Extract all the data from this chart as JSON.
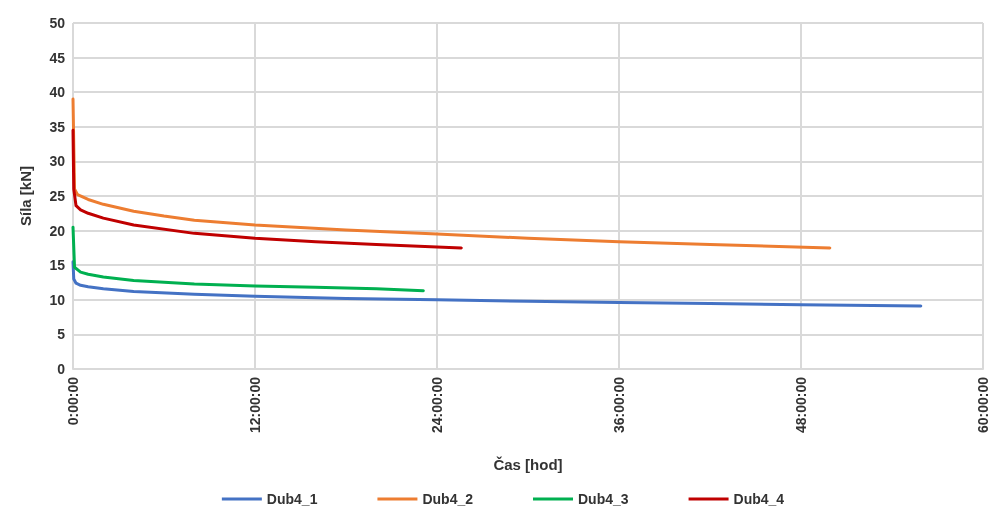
{
  "chart_data": {
    "type": "line",
    "xlabel": "Čas [hod]",
    "ylabel": "Síla [kN]",
    "xlim": [
      0,
      60
    ],
    "xticks": [
      {
        "value": 0,
        "label": "0:00:00"
      },
      {
        "value": 12,
        "label": "12:00:00"
      },
      {
        "value": 24,
        "label": "24:00:00"
      },
      {
        "value": 36,
        "label": "36:00:00"
      },
      {
        "value": 48,
        "label": "48:00:00"
      },
      {
        "value": 60,
        "label": "60:00:00"
      }
    ],
    "ylim": [
      0,
      50
    ],
    "yticks": [
      0,
      5,
      10,
      15,
      20,
      25,
      30,
      35,
      40,
      45,
      50
    ],
    "grid": true,
    "legend": "bottom",
    "marker": "none",
    "line_style": "solid",
    "series": [
      {
        "name": "Dub4_1",
        "color": "#4472c4",
        "x": [
          0,
          0.05,
          0.2,
          0.5,
          1,
          2,
          4,
          8,
          12,
          18,
          24,
          30,
          36,
          42,
          48,
          55.9
        ],
        "values": [
          15.5,
          13,
          12.4,
          12.1,
          11.9,
          11.6,
          11.2,
          10.8,
          10.5,
          10.2,
          10.0,
          9.8,
          9.6,
          9.45,
          9.3,
          9.1
        ]
      },
      {
        "name": "Dub4_2",
        "color": "#ed7d31",
        "x": [
          0,
          0.1,
          0.3,
          1,
          2,
          4,
          6,
          8,
          12,
          18,
          24,
          30,
          36,
          42,
          49.9
        ],
        "values": [
          39,
          26,
          25.2,
          24.5,
          23.8,
          22.8,
          22.1,
          21.5,
          20.8,
          20.1,
          19.5,
          18.9,
          18.4,
          18.0,
          17.5
        ]
      },
      {
        "name": "Dub4_3",
        "color": "#00b050",
        "x": [
          0,
          0.1,
          0.5,
          1,
          2,
          4,
          8,
          12,
          16,
          20,
          23.1
        ],
        "values": [
          20.5,
          14.7,
          14.0,
          13.7,
          13.3,
          12.8,
          12.3,
          12.0,
          11.8,
          11.6,
          11.3
        ]
      },
      {
        "name": "Dub4_4",
        "color": "#c00000",
        "x": [
          0,
          0.05,
          0.2,
          0.5,
          1,
          2,
          4,
          8,
          12,
          16,
          20,
          25.6
        ],
        "values": [
          34.5,
          26,
          23.6,
          23.0,
          22.5,
          21.8,
          20.8,
          19.6,
          18.9,
          18.4,
          18.0,
          17.5
        ]
      }
    ]
  }
}
